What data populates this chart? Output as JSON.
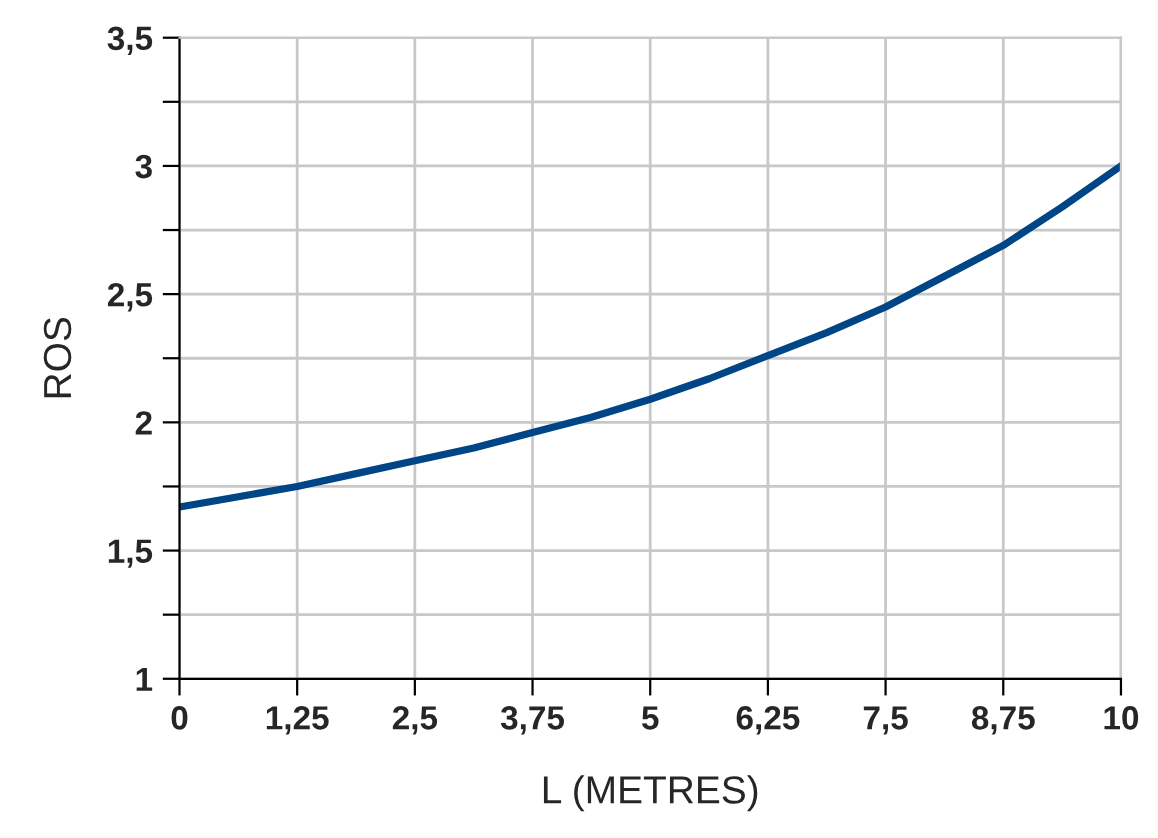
{
  "chart_data": {
    "type": "line",
    "xlabel": "L (METRES)",
    "ylabel": "ROS",
    "x": [
      0,
      0.625,
      1.25,
      1.875,
      2.5,
      3.125,
      3.75,
      4.375,
      5,
      5.625,
      6.25,
      6.875,
      7.5,
      8.125,
      8.75,
      9.375,
      10
    ],
    "series": [
      {
        "color": "#004586",
        "values": [
          1.67,
          1.71,
          1.75,
          1.8,
          1.85,
          1.9,
          1.96,
          2.02,
          2.09,
          2.17,
          2.26,
          2.35,
          2.45,
          2.57,
          2.69,
          2.84,
          3.0
        ]
      }
    ],
    "xlim": [
      0,
      10
    ],
    "ylim": [
      1,
      3.5
    ],
    "xticks": [
      {
        "value": 0,
        "label": "0"
      },
      {
        "value": 1.25,
        "label": "1,25"
      },
      {
        "value": 2.5,
        "label": "2,5"
      },
      {
        "value": 3.75,
        "label": "3,75"
      },
      {
        "value": 5,
        "label": "5"
      },
      {
        "value": 6.25,
        "label": "6,25"
      },
      {
        "value": 7.5,
        "label": "7,5"
      },
      {
        "value": 8.75,
        "label": "8,75"
      },
      {
        "value": 10,
        "label": "10"
      }
    ],
    "yticks": [
      {
        "value": 1,
        "label": "1"
      },
      {
        "value": 1.25,
        "label": null
      },
      {
        "value": 1.5,
        "label": "1,5"
      },
      {
        "value": 1.75,
        "label": null
      },
      {
        "value": 2,
        "label": "2"
      },
      {
        "value": 2.25,
        "label": null
      },
      {
        "value": 2.5,
        "label": "2,5"
      },
      {
        "value": 2.75,
        "label": null
      },
      {
        "value": 3,
        "label": "3"
      },
      {
        "value": 3.25,
        "label": null
      },
      {
        "value": 3.5,
        "label": "3,5"
      }
    ],
    "grid": true,
    "marker": "none",
    "line_style": "solid"
  }
}
